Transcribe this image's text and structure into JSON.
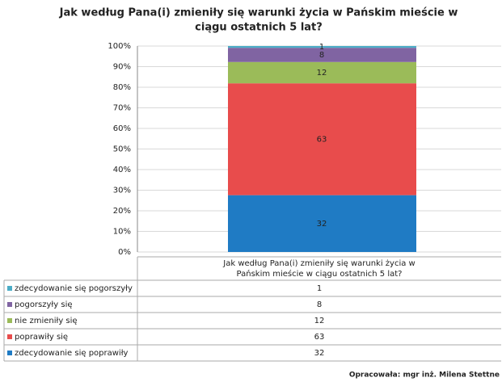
{
  "chart_data": {
    "type": "stacked_bar_100",
    "title": [
      "Jak według Pana(i) zmieniły się warunki życia w Pańskim mieście w",
      "ciągu ostatnich 5 lat?"
    ],
    "categories": [
      "Jak według Pana(i) zmieniły się warunki życia w Pańskim mieście w ciągu ostatnich 5 lat?"
    ],
    "category_label_lines": [
      "Jak według Pana(i) zmieniły się warunki życia w",
      "Pańskim mieście w ciągu ostatnich 5 lat?"
    ],
    "series": [
      {
        "name": "zdecydowanie się pogorszyły",
        "color": "#4bacc6",
        "values": [
          1
        ]
      },
      {
        "name": "pogorszyły się",
        "color": "#8064a2",
        "values": [
          8
        ]
      },
      {
        "name": "nie zmieniły się",
        "color": "#9bbb59",
        "values": [
          12
        ]
      },
      {
        "name": "poprawiły się",
        "color": "#e84c4c",
        "values": [
          63
        ]
      },
      {
        "name": "zdecydowanie się poprawiły",
        "color": "#1f7bc4",
        "values": [
          32
        ]
      }
    ],
    "ylim": [
      0,
      100
    ],
    "yticks": [
      {
        "value": 0,
        "label": "0%"
      },
      {
        "value": 10,
        "label": "10%"
      },
      {
        "value": 20,
        "label": "20%"
      },
      {
        "value": 30,
        "label": "30%"
      },
      {
        "value": 40,
        "label": "40%"
      },
      {
        "value": 50,
        "label": "50%"
      },
      {
        "value": 60,
        "label": "60%"
      },
      {
        "value": 70,
        "label": "70%"
      },
      {
        "value": 80,
        "label": "80%"
      },
      {
        "value": 90,
        "label": "90%"
      },
      {
        "value": 100,
        "label": "100%"
      }
    ],
    "grid": true,
    "footer": "Opracowała: mgr inż. Milena Stettne"
  }
}
